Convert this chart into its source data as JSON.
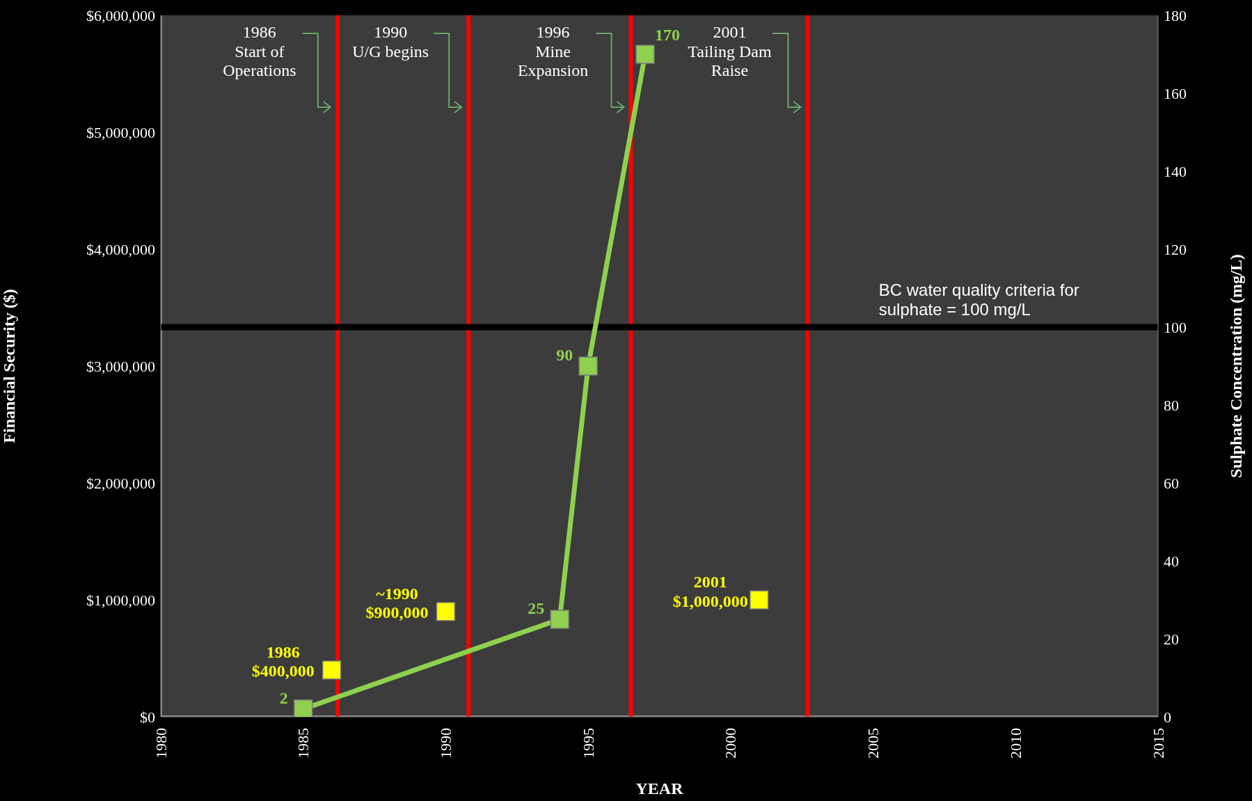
{
  "chart_data": {
    "type": "line",
    "xlabel": "YEAR",
    "ylabel": "Financial Security ($)",
    "y2label": "Sulphate  Concentration (mg/L)",
    "xlim": [
      1980,
      2015
    ],
    "xticks": [
      1980,
      1985,
      1990,
      1995,
      2000,
      2005,
      2010,
      2015
    ],
    "ylim": [
      0,
      6000000
    ],
    "yticks": [
      {
        "value": 0,
        "label": "$0"
      },
      {
        "value": 1000000,
        "label": "$1,000,000"
      },
      {
        "value": 2000000,
        "label": "$2,000,000"
      },
      {
        "value": 3000000,
        "label": "$3,000,000"
      },
      {
        "value": 4000000,
        "label": "$4,000,000"
      },
      {
        "value": 5000000,
        "label": "$5,000,000"
      },
      {
        "value": 6000000,
        "label": "$6,000,000"
      }
    ],
    "y2lim": [
      0,
      180
    ],
    "y2ticks": [
      0,
      20,
      40,
      60,
      80,
      100,
      120,
      140,
      160,
      180
    ],
    "marker": "square",
    "grid": false,
    "series": [
      {
        "type": "scatter",
        "color": "#ffff00",
        "x": [
          1986,
          1990,
          2001
        ],
        "values": [
          400000,
          900000,
          1000000
        ],
        "value_labels": [
          "1986\n$400,000",
          "~1990\n$900,000",
          "2001\n$1,000,000"
        ]
      },
      {
        "type": "line",
        "axis": "y2",
        "color": "#8fd14f",
        "x": [
          1985,
          1994,
          1995,
          1997
        ],
        "values": [
          2,
          25,
          90,
          170
        ],
        "value_labels": [
          "2",
          "25",
          "90",
          "170"
        ]
      }
    ],
    "ref_lines": [
      {
        "axis": "x",
        "value": 1986.2,
        "label": "1986\nStart of\nOperations",
        "color": "#ff0000"
      },
      {
        "axis": "x",
        "value": 1990.8,
        "label": "1990\nU/G begins",
        "color": "#ff0000"
      },
      {
        "axis": "x",
        "value": 1996.5,
        "label": "1996\nMine\nExpansion",
        "color": "#ff0000"
      },
      {
        "axis": "x",
        "value": 2002.7,
        "label": "2001\nTailing Dam\nRaise",
        "color": "#ff0000"
      },
      {
        "axis": "y2",
        "value": 100,
        "label": "BC water quality criteria for\nsulphate = 100 mg/L",
        "color": "#000000"
      }
    ]
  }
}
